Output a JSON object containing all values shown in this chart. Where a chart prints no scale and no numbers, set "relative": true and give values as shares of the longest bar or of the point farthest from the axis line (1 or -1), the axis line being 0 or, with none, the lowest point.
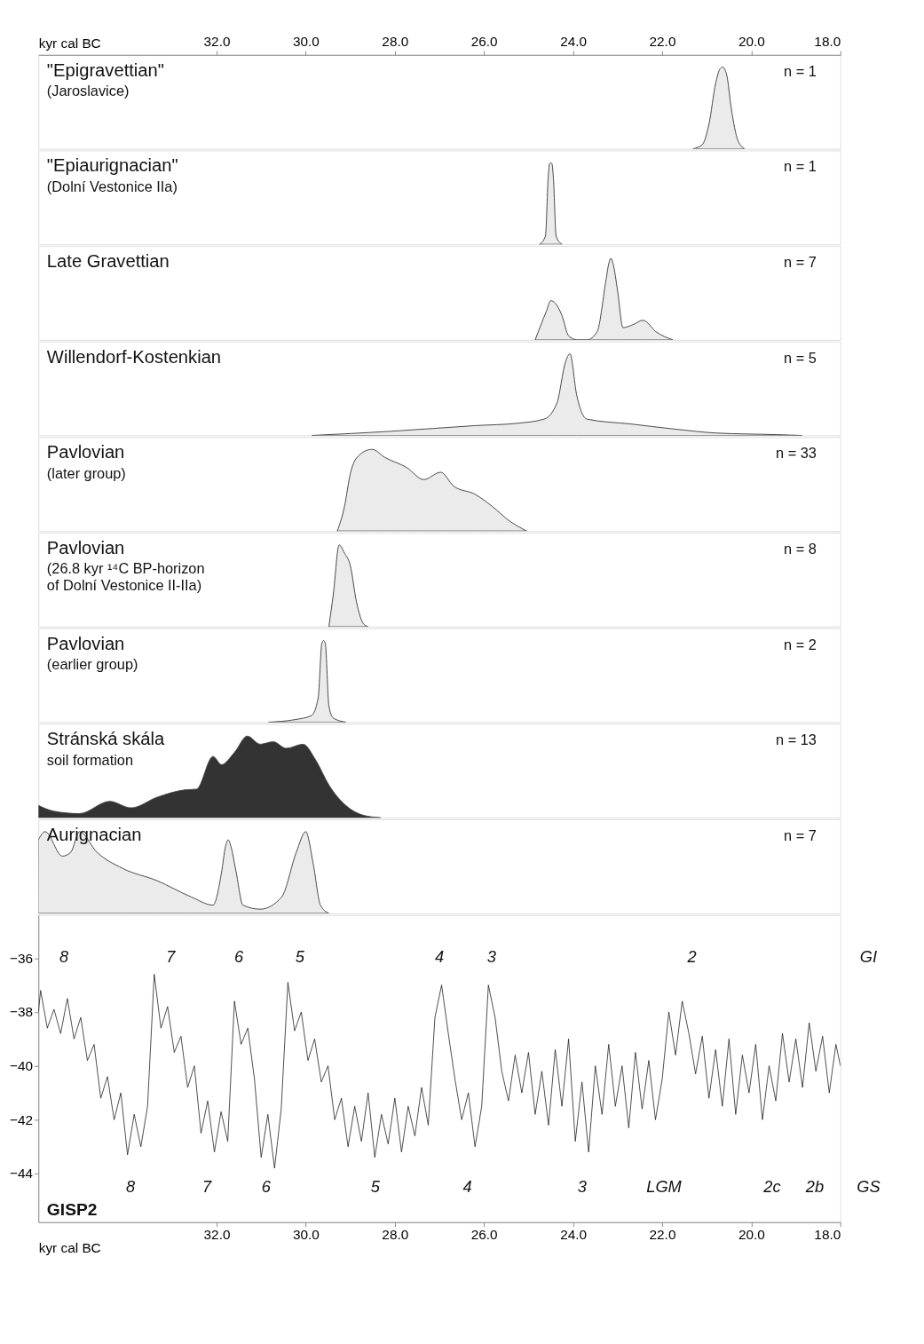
{
  "chart_data": [
    {
      "type": "area",
      "title": "\"Epigravettian\"",
      "subtitle": "(Jaroslavice)",
      "annotations": [
        "n = 1"
      ],
      "relative": true,
      "xlim": [
        36.0,
        18.0
      ],
      "x2lim": [
        36.0,
        18.0
      ],
      "x2label": "kyr cal BC",
      "x2ticks": [
        {
          "value": 32,
          "label": "32.0"
        },
        {
          "value": 30,
          "label": "30.0"
        },
        {
          "value": 28,
          "label": "28.0"
        },
        {
          "value": 26,
          "label": "26.0"
        },
        {
          "value": 24,
          "label": "24.0"
        },
        {
          "value": 22,
          "label": "22.0"
        },
        {
          "value": 20,
          "label": "20.0"
        },
        {
          "value": 18,
          "label": "18.0"
        }
      ],
      "x": [
        21.3,
        21.1,
        20.95,
        20.8,
        20.7,
        20.64,
        20.55,
        20.45,
        20.3,
        20.15
      ],
      "series": [
        {
          "color": "#ebebeb",
          "values": [
            0,
            0.05,
            0.3,
            0.8,
            0.98,
            1,
            0.9,
            0.5,
            0.1,
            0
          ]
        }
      ]
    },
    {
      "type": "area",
      "title": "\"Epiaurignacian\"",
      "subtitle": "(Dolní Vestonice IIa)",
      "annotations": [
        "n = 1"
      ],
      "relative": true,
      "xlim": [
        36.0,
        18.0
      ],
      "x": [
        24.75,
        24.62,
        24.56,
        24.53,
        24.5,
        24.47,
        24.44,
        24.38,
        24.25
      ],
      "series": [
        {
          "color": "#ebebeb",
          "values": [
            0,
            0.1,
            0.8,
            0.98,
            1,
            0.98,
            0.8,
            0.1,
            0
          ]
        }
      ]
    },
    {
      "type": "area",
      "title": "Late Gravettian",
      "annotations": [
        "n = 7"
      ],
      "relative": true,
      "xlim": [
        36.0,
        18.0
      ],
      "x": [
        24.85,
        24.6,
        24.5,
        24.4,
        24.25,
        24.1,
        23.9,
        23.69,
        23.46,
        23.27,
        23.2,
        23.15,
        23.1,
        23.0,
        22.88,
        22.68,
        22.43,
        22.14,
        21.76
      ],
      "series": [
        {
          "color": "#ebebeb",
          "values": [
            0,
            0.35,
            0.48,
            0.45,
            0.3,
            0.05,
            0,
            0,
            0.1,
            0.7,
            0.93,
            1,
            0.93,
            0.6,
            0.15,
            0.18,
            0.24,
            0.1,
            0
          ]
        }
      ]
    },
    {
      "type": "area",
      "title": "Willendorf-Kostenkian",
      "annotations": [
        "n = 5"
      ],
      "relative": true,
      "xlim": [
        36.0,
        18.0
      ],
      "x": [
        29.86,
        28.1,
        26.2,
        25.23,
        24.65,
        24.36,
        24.17,
        24.07,
        23.92,
        23.69,
        22.7,
        21.76,
        20.8,
        19.44,
        18.86
      ],
      "series": [
        {
          "color": "#ebebeb",
          "values": [
            0,
            0.05,
            0.12,
            0.15,
            0.2,
            0.4,
            0.9,
            1,
            0.5,
            0.2,
            0.14,
            0.08,
            0.03,
            0.01,
            0
          ]
        }
      ]
    },
    {
      "type": "area",
      "title": "Pavlovian",
      "subtitle": "(later group)",
      "annotations": [
        "n = 33"
      ],
      "relative": true,
      "xlim": [
        36.0,
        18.0
      ],
      "x": [
        29.29,
        29.13,
        29.0,
        28.8,
        28.51,
        28.22,
        27.74,
        27.35,
        26.97,
        26.68,
        26.2,
        25.81,
        25.42,
        25.04
      ],
      "series": [
        {
          "color": "#ebebeb",
          "values": [
            0,
            0.3,
            0.7,
            0.93,
            1,
            0.9,
            0.78,
            0.63,
            0.72,
            0.55,
            0.45,
            0.3,
            0.12,
            0
          ]
        }
      ]
    },
    {
      "type": "area",
      "title": "Pavlovian",
      "subtitle": "(26.8 kyr ¹⁴C BP-horizon\nof Dolní Vestonice II-IIa)",
      "annotations": [
        "n = 8"
      ],
      "relative": true,
      "xlim": [
        36.0,
        18.0
      ],
      "x": [
        29.48,
        29.38,
        29.25,
        29.13,
        29.0,
        28.86,
        28.7,
        28.6
      ],
      "series": [
        {
          "color": "#ebebeb",
          "values": [
            0,
            0.4,
            1,
            0.9,
            0.75,
            0.3,
            0.03,
            0
          ]
        }
      ]
    },
    {
      "type": "area",
      "title": "Pavlovian",
      "subtitle": "(earlier group)",
      "annotations": [
        "n = 2"
      ],
      "relative": true,
      "xlim": [
        36.0,
        18.0
      ],
      "x": [
        30.83,
        30.25,
        29.87,
        29.72,
        29.64,
        29.6,
        29.56,
        29.48,
        29.38,
        29.1
      ],
      "series": [
        {
          "color": "#ebebeb",
          "values": [
            0,
            0.03,
            0.08,
            0.3,
            0.96,
            1,
            0.96,
            0.2,
            0.05,
            0
          ]
        }
      ]
    },
    {
      "type": "area",
      "title": "Stránská skála",
      "subtitle": "soil formation",
      "annotations": [
        "n = 13"
      ],
      "relative": true,
      "xlim": [
        36.0,
        18.0
      ],
      "x": [
        36.0,
        35.66,
        35.08,
        34.4,
        33.92,
        33.34,
        32.72,
        32.45,
        32.08,
        31.89,
        31.6,
        31.31,
        31.02,
        30.73,
        30.44,
        30.06,
        29.77,
        29.48,
        29.1,
        28.71,
        28.32
      ],
      "series": [
        {
          "color": "#333333",
          "values": [
            0.15,
            0.08,
            0.05,
            0.2,
            0.12,
            0.25,
            0.34,
            0.35,
            0.75,
            0.65,
            0.8,
            1,
            0.9,
            0.93,
            0.85,
            0.9,
            0.7,
            0.4,
            0.15,
            0.03,
            0
          ]
        }
      ]
    },
    {
      "type": "area",
      "title": "Aurignacian",
      "annotations": [
        "n = 7"
      ],
      "relative": true,
      "xlim": [
        36.0,
        18.0
      ],
      "x": [
        36.0,
        35.85,
        35.46,
        35.27,
        35.08,
        34.69,
        34.11,
        33.34,
        32.57,
        32.08,
        31.89,
        31.8,
        31.74,
        31.68,
        31.56,
        31.41,
        31.02,
        30.54,
        30.21,
        30.0,
        29.83,
        29.67,
        29.48
      ],
      "series": [
        {
          "color": "#ebebeb",
          "values": [
            0.9,
            1,
            0.7,
            0.75,
            1,
            0.75,
            0.55,
            0.4,
            0.2,
            0.1,
            0.5,
            0.82,
            0.9,
            0.82,
            0.5,
            0.1,
            0.05,
            0.2,
            0.75,
            1,
            0.6,
            0.1,
            0
          ]
        }
      ]
    },
    {
      "type": "line",
      "title": "GISP2",
      "xlim": [
        36.0,
        18.0
      ],
      "xlabel": "kyr cal BC",
      "xticks": [
        {
          "value": 32,
          "label": "32.0"
        },
        {
          "value": 30,
          "label": "30.0"
        },
        {
          "value": 28,
          "label": "28.0"
        },
        {
          "value": 26,
          "label": "26.0"
        },
        {
          "value": 24,
          "label": "24.0"
        },
        {
          "value": 22,
          "label": "22.0"
        },
        {
          "value": 20,
          "label": "20.0"
        },
        {
          "value": 18,
          "label": "18.0"
        }
      ],
      "ylim": [
        -45.8,
        -34.4
      ],
      "yticks": [
        -36,
        -38,
        -40,
        -42,
        -44
      ],
      "annotations": [
        "8",
        "7",
        "6",
        "5",
        "4",
        "3",
        "2",
        "GI",
        "8",
        "7",
        "6",
        "5",
        "4",
        "3",
        "LGM",
        "2c",
        "2b",
        "GS"
      ],
      "x": [
        36.0,
        35.95,
        35.8,
        35.65,
        35.5,
        35.35,
        35.2,
        35.05,
        34.9,
        34.75,
        34.6,
        34.45,
        34.3,
        34.15,
        34.0,
        33.85,
        33.7,
        33.55,
        33.4,
        33.25,
        33.1,
        32.95,
        32.8,
        32.65,
        32.5,
        32.35,
        32.2,
        32.05,
        31.9,
        31.75,
        31.6,
        31.45,
        31.3,
        31.15,
        31.0,
        30.85,
        30.7,
        30.55,
        30.4,
        30.25,
        30.1,
        29.95,
        29.8,
        29.65,
        29.5,
        29.35,
        29.2,
        29.05,
        28.9,
        28.75,
        28.6,
        28.45,
        28.3,
        28.15,
        28.0,
        27.85,
        27.7,
        27.55,
        27.4,
        27.25,
        27.1,
        26.95,
        26.8,
        26.65,
        26.5,
        26.35,
        26.2,
        26.05,
        25.9,
        25.75,
        25.6,
        25.45,
        25.3,
        25.15,
        25.0,
        24.85,
        24.7,
        24.55,
        24.4,
        24.25,
        24.1,
        23.95,
        23.8,
        23.65,
        23.5,
        23.35,
        23.2,
        23.05,
        22.9,
        22.75,
        22.6,
        22.45,
        22.3,
        22.15,
        22.0,
        21.85,
        21.7,
        21.55,
        21.4,
        21.25,
        21.1,
        20.95,
        20.8,
        20.65,
        20.5,
        20.35,
        20.2,
        20.05,
        19.9,
        19.75,
        19.6,
        19.45,
        19.3,
        19.15,
        19.0,
        18.85,
        18.7,
        18.55,
        18.4,
        18.25,
        18.1,
        18.0
      ],
      "series": [
        {
          "color": "#1a1a1a",
          "values": [
            -38.0,
            -37.2,
            -38.6,
            -37.9,
            -38.8,
            -37.5,
            -39.0,
            -38.2,
            -39.8,
            -39.2,
            -41.2,
            -40.4,
            -42.0,
            -41.0,
            -43.3,
            -41.8,
            -43.0,
            -41.5,
            -36.6,
            -38.6,
            -37.8,
            -39.5,
            -38.9,
            -40.8,
            -40.0,
            -42.5,
            -41.3,
            -43.2,
            -41.7,
            -42.8,
            -37.6,
            -39.2,
            -38.6,
            -40.5,
            -43.4,
            -41.8,
            -43.8,
            -41.6,
            -36.9,
            -38.7,
            -38.0,
            -39.8,
            -39.0,
            -40.6,
            -40.0,
            -42.0,
            -41.2,
            -43.0,
            -41.5,
            -42.8,
            -41.0,
            -43.4,
            -41.8,
            -42.9,
            -41.2,
            -43.2,
            -41.5,
            -42.6,
            -40.8,
            -42.2,
            -38.2,
            -37.0,
            -38.8,
            -40.5,
            -42.0,
            -41.0,
            -43.0,
            -41.5,
            -37.0,
            -38.2,
            -40.2,
            -41.3,
            -39.6,
            -41.0,
            -39.5,
            -41.8,
            -40.2,
            -42.2,
            -39.4,
            -41.5,
            -39.0,
            -42.8,
            -40.6,
            -43.2,
            -40.0,
            -41.8,
            -39.2,
            -41.5,
            -40.0,
            -42.3,
            -39.5,
            -41.6,
            -39.8,
            -42.0,
            -40.5,
            -38.0,
            -39.6,
            -37.6,
            -38.8,
            -40.3,
            -38.9,
            -41.2,
            -39.4,
            -41.5,
            -39.0,
            -41.8,
            -39.6,
            -41.0,
            -39.2,
            -42.0,
            -40.0,
            -41.3,
            -38.8,
            -40.6,
            -39.0,
            -40.8,
            -38.4,
            -40.2,
            -38.9,
            -41.0,
            -39.2,
            -40.0
          ]
        }
      ]
    }
  ]
}
